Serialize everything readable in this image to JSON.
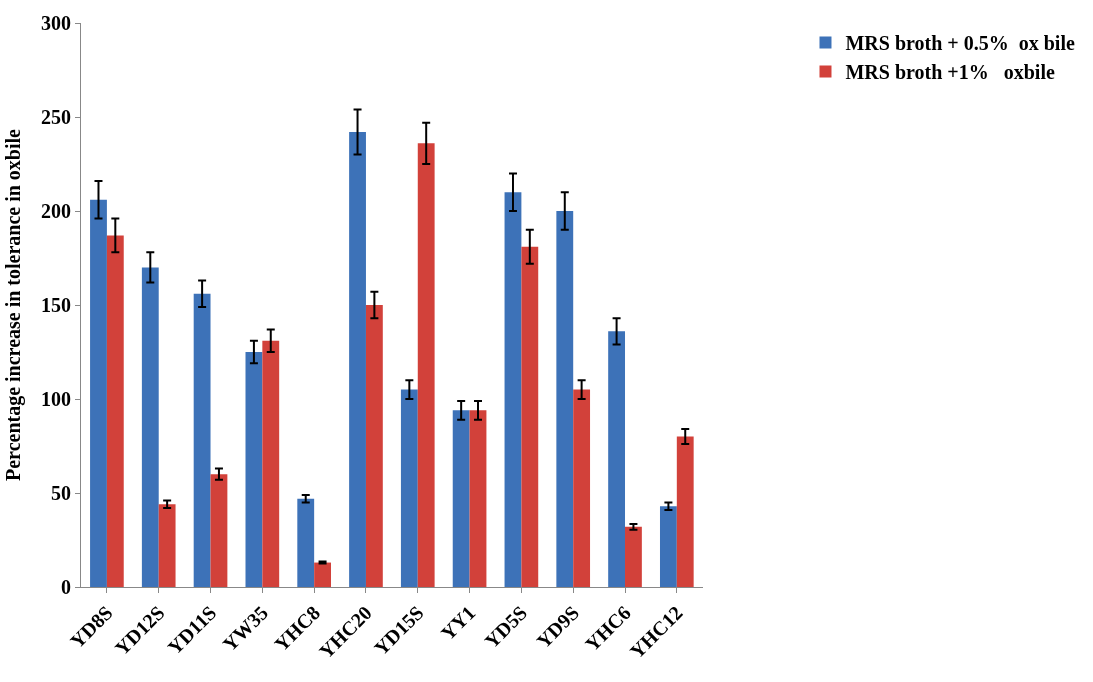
{
  "chart_data": {
    "type": "bar",
    "ylabel": "Percentage increase in tolerance in oxbile",
    "categories": [
      "YD8S",
      "YD12S",
      "YD11S",
      "YW35",
      "YHC8",
      "YHC20",
      "YD15S",
      "YY1",
      "YD5S",
      "YD9S",
      "YHC6",
      "YHC12"
    ],
    "series": [
      {
        "name": "MRS broth + 0.5%  ox bile",
        "color": "#3d72b8",
        "values": [
          206,
          170,
          156,
          125,
          47,
          242,
          105,
          94,
          210,
          200,
          136,
          43
        ],
        "errors": [
          10,
          8,
          7,
          6,
          2,
          12,
          5,
          5,
          10,
          10,
          7,
          2
        ]
      },
      {
        "name": "MRS broth +1%   oxbile",
        "color": "#d2413a",
        "values": [
          187,
          44,
          60,
          131,
          13,
          150,
          236,
          94,
          181,
          105,
          32,
          80
        ],
        "errors": [
          9,
          2,
          3,
          6,
          0.5,
          7,
          11,
          5,
          9,
          5,
          1.5,
          4
        ]
      }
    ],
    "ylim": [
      0,
      300
    ],
    "yticks": [
      0,
      50,
      100,
      150,
      200,
      250,
      300
    ],
    "legend": "top right"
  }
}
